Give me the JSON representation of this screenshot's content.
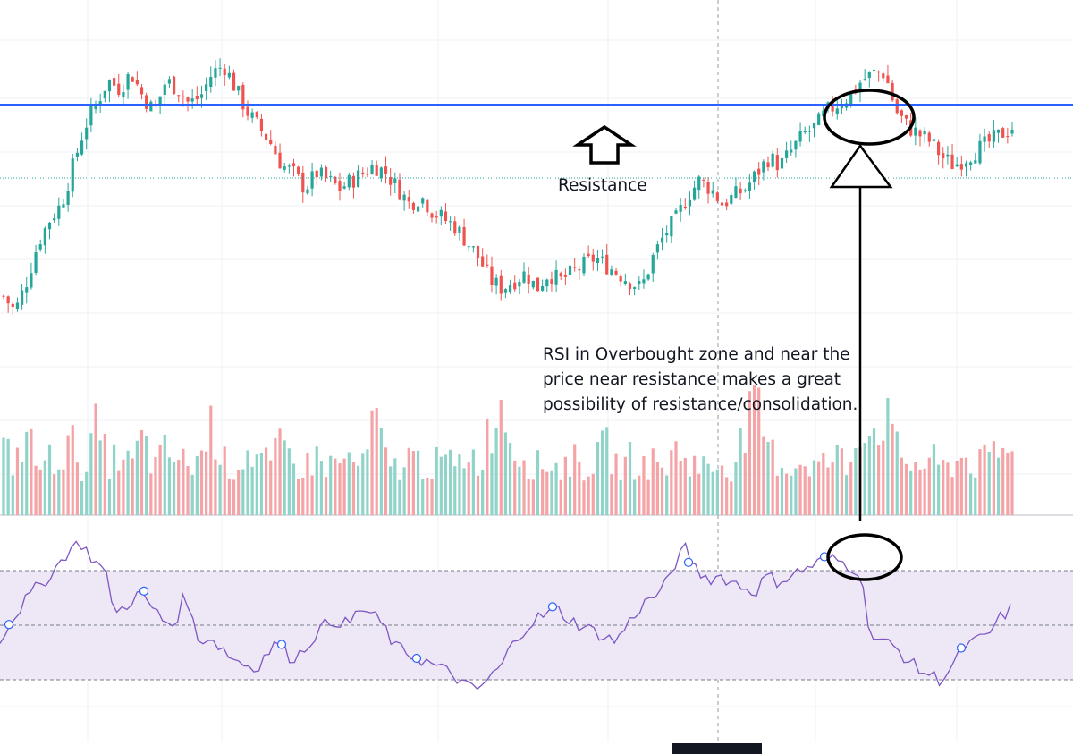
{
  "colors": {
    "up": "#26a69a",
    "down": "#ef5350",
    "volume_up": "#8fd3c9",
    "volume_down": "#f4a3a6",
    "resistance_line": "#2962ff",
    "rsi_line": "#7e57c2",
    "rsi_band": "#ede7f6",
    "grid": "#eef0f4",
    "annotation": "#000000"
  },
  "annotations": {
    "resistance_label": "Resistance",
    "rsi_note": "RSI in Overbought zone and near the\nprice near resistance makes a great\npossibility of resistance/consolidation."
  },
  "chart_data": [
    {
      "type": "candlestick",
      "title": "",
      "resistance_level": 100,
      "ylim": [
        62,
        105
      ],
      "close_series": [
        70,
        68,
        72,
        77,
        80,
        82,
        87,
        92,
        95,
        98,
        97,
        99,
        96,
        94,
        98,
        97,
        95,
        96,
        99,
        100,
        97,
        94,
        92,
        90,
        87,
        86,
        84,
        86,
        85,
        84,
        85,
        86,
        87,
        86,
        84,
        82,
        83,
        81,
        80,
        79,
        77,
        75,
        72,
        71,
        72,
        73,
        71,
        73,
        72,
        73,
        74,
        75,
        74,
        73,
        72,
        71,
        75,
        78,
        80,
        83,
        85,
        84,
        82,
        83,
        84,
        86,
        88,
        87,
        89,
        91,
        92,
        94,
        95,
        96,
        98,
        99,
        99,
        94,
        92,
        91,
        90,
        88,
        87,
        88,
        89,
        90,
        91,
        92
      ],
      "volume": [
        55,
        45,
        70,
        40,
        48,
        52,
        60,
        38,
        75,
        45,
        50,
        42,
        65,
        40,
        55,
        48,
        42,
        50,
        80,
        45,
        40,
        55,
        48,
        42,
        60,
        45,
        40,
        50,
        42,
        45,
        48,
        40,
        85,
        45,
        40,
        50,
        45,
        42,
        48,
        40,
        55,
        45,
        75,
        95,
        60,
        48,
        42,
        45,
        40,
        48,
        42,
        45,
        60,
        40,
        48,
        42,
        45,
        40,
        55,
        48,
        42,
        40,
        45,
        42,
        75,
        90,
        55,
        45,
        40,
        48,
        42,
        45,
        50,
        42,
        85,
        70,
        88,
        55,
        45,
        42,
        48,
        40,
        45,
        50,
        42,
        48,
        55,
        50
      ]
    },
    {
      "type": "line",
      "title": "",
      "name": "",
      "ylim": [
        0,
        100
      ],
      "bands": [
        30,
        50,
        70
      ],
      "values": [
        45,
        52,
        58,
        63,
        67,
        72,
        78,
        80,
        74,
        70,
        54,
        58,
        62,
        57,
        52,
        50,
        62,
        44,
        46,
        42,
        38,
        36,
        34,
        40,
        44,
        38,
        40,
        46,
        50,
        52,
        50,
        56,
        54,
        50,
        42,
        40,
        38,
        36,
        34,
        32,
        28,
        26,
        30,
        34,
        42,
        48,
        52,
        54,
        56,
        52,
        50,
        48,
        46,
        44,
        50,
        56,
        60,
        62,
        72,
        78,
        70,
        67,
        68,
        66,
        64,
        62,
        68,
        66,
        68,
        70,
        72,
        74,
        74,
        72,
        70,
        46,
        44,
        42,
        38,
        34,
        32,
        30,
        35,
        42,
        44,
        46,
        52,
        56
      ]
    }
  ]
}
